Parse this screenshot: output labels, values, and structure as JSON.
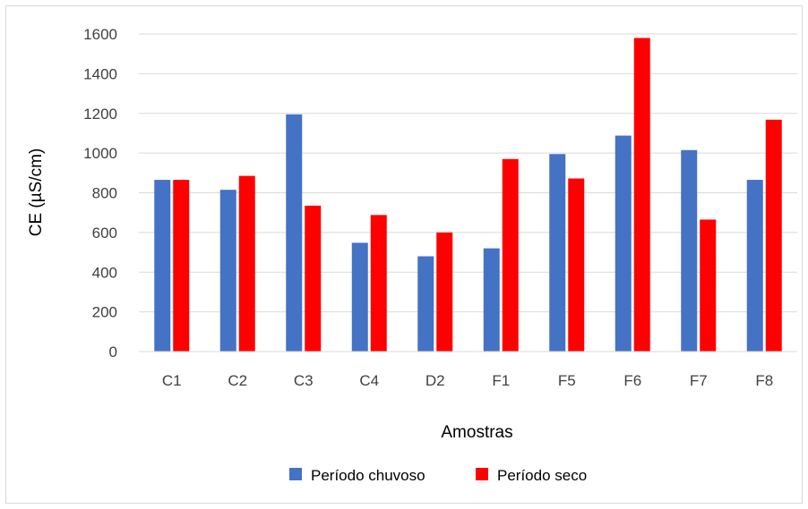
{
  "chart_data": {
    "type": "bar",
    "title": "",
    "xlabel": "Amostras",
    "ylabel": "CE (µS/cm)",
    "ylim": [
      0,
      1600
    ],
    "yticks": [
      0,
      200,
      400,
      600,
      800,
      1000,
      1200,
      1400,
      1600
    ],
    "categories": [
      "C1",
      "C2",
      "C3",
      "C4",
      "D2",
      "F1",
      "F5",
      "F6",
      "F7",
      "F8"
    ],
    "series": [
      {
        "name": "Período chuvoso",
        "color": "#4472c4",
        "values": [
          865,
          815,
          1195,
          548,
          480,
          520,
          995,
          1088,
          1015,
          865
        ]
      },
      {
        "name": "Período seco",
        "color": "#ff0000",
        "values": [
          865,
          885,
          735,
          688,
          600,
          970,
          872,
          1580,
          665,
          1168
        ]
      }
    ],
    "grid": true,
    "legend": "bottom"
  }
}
